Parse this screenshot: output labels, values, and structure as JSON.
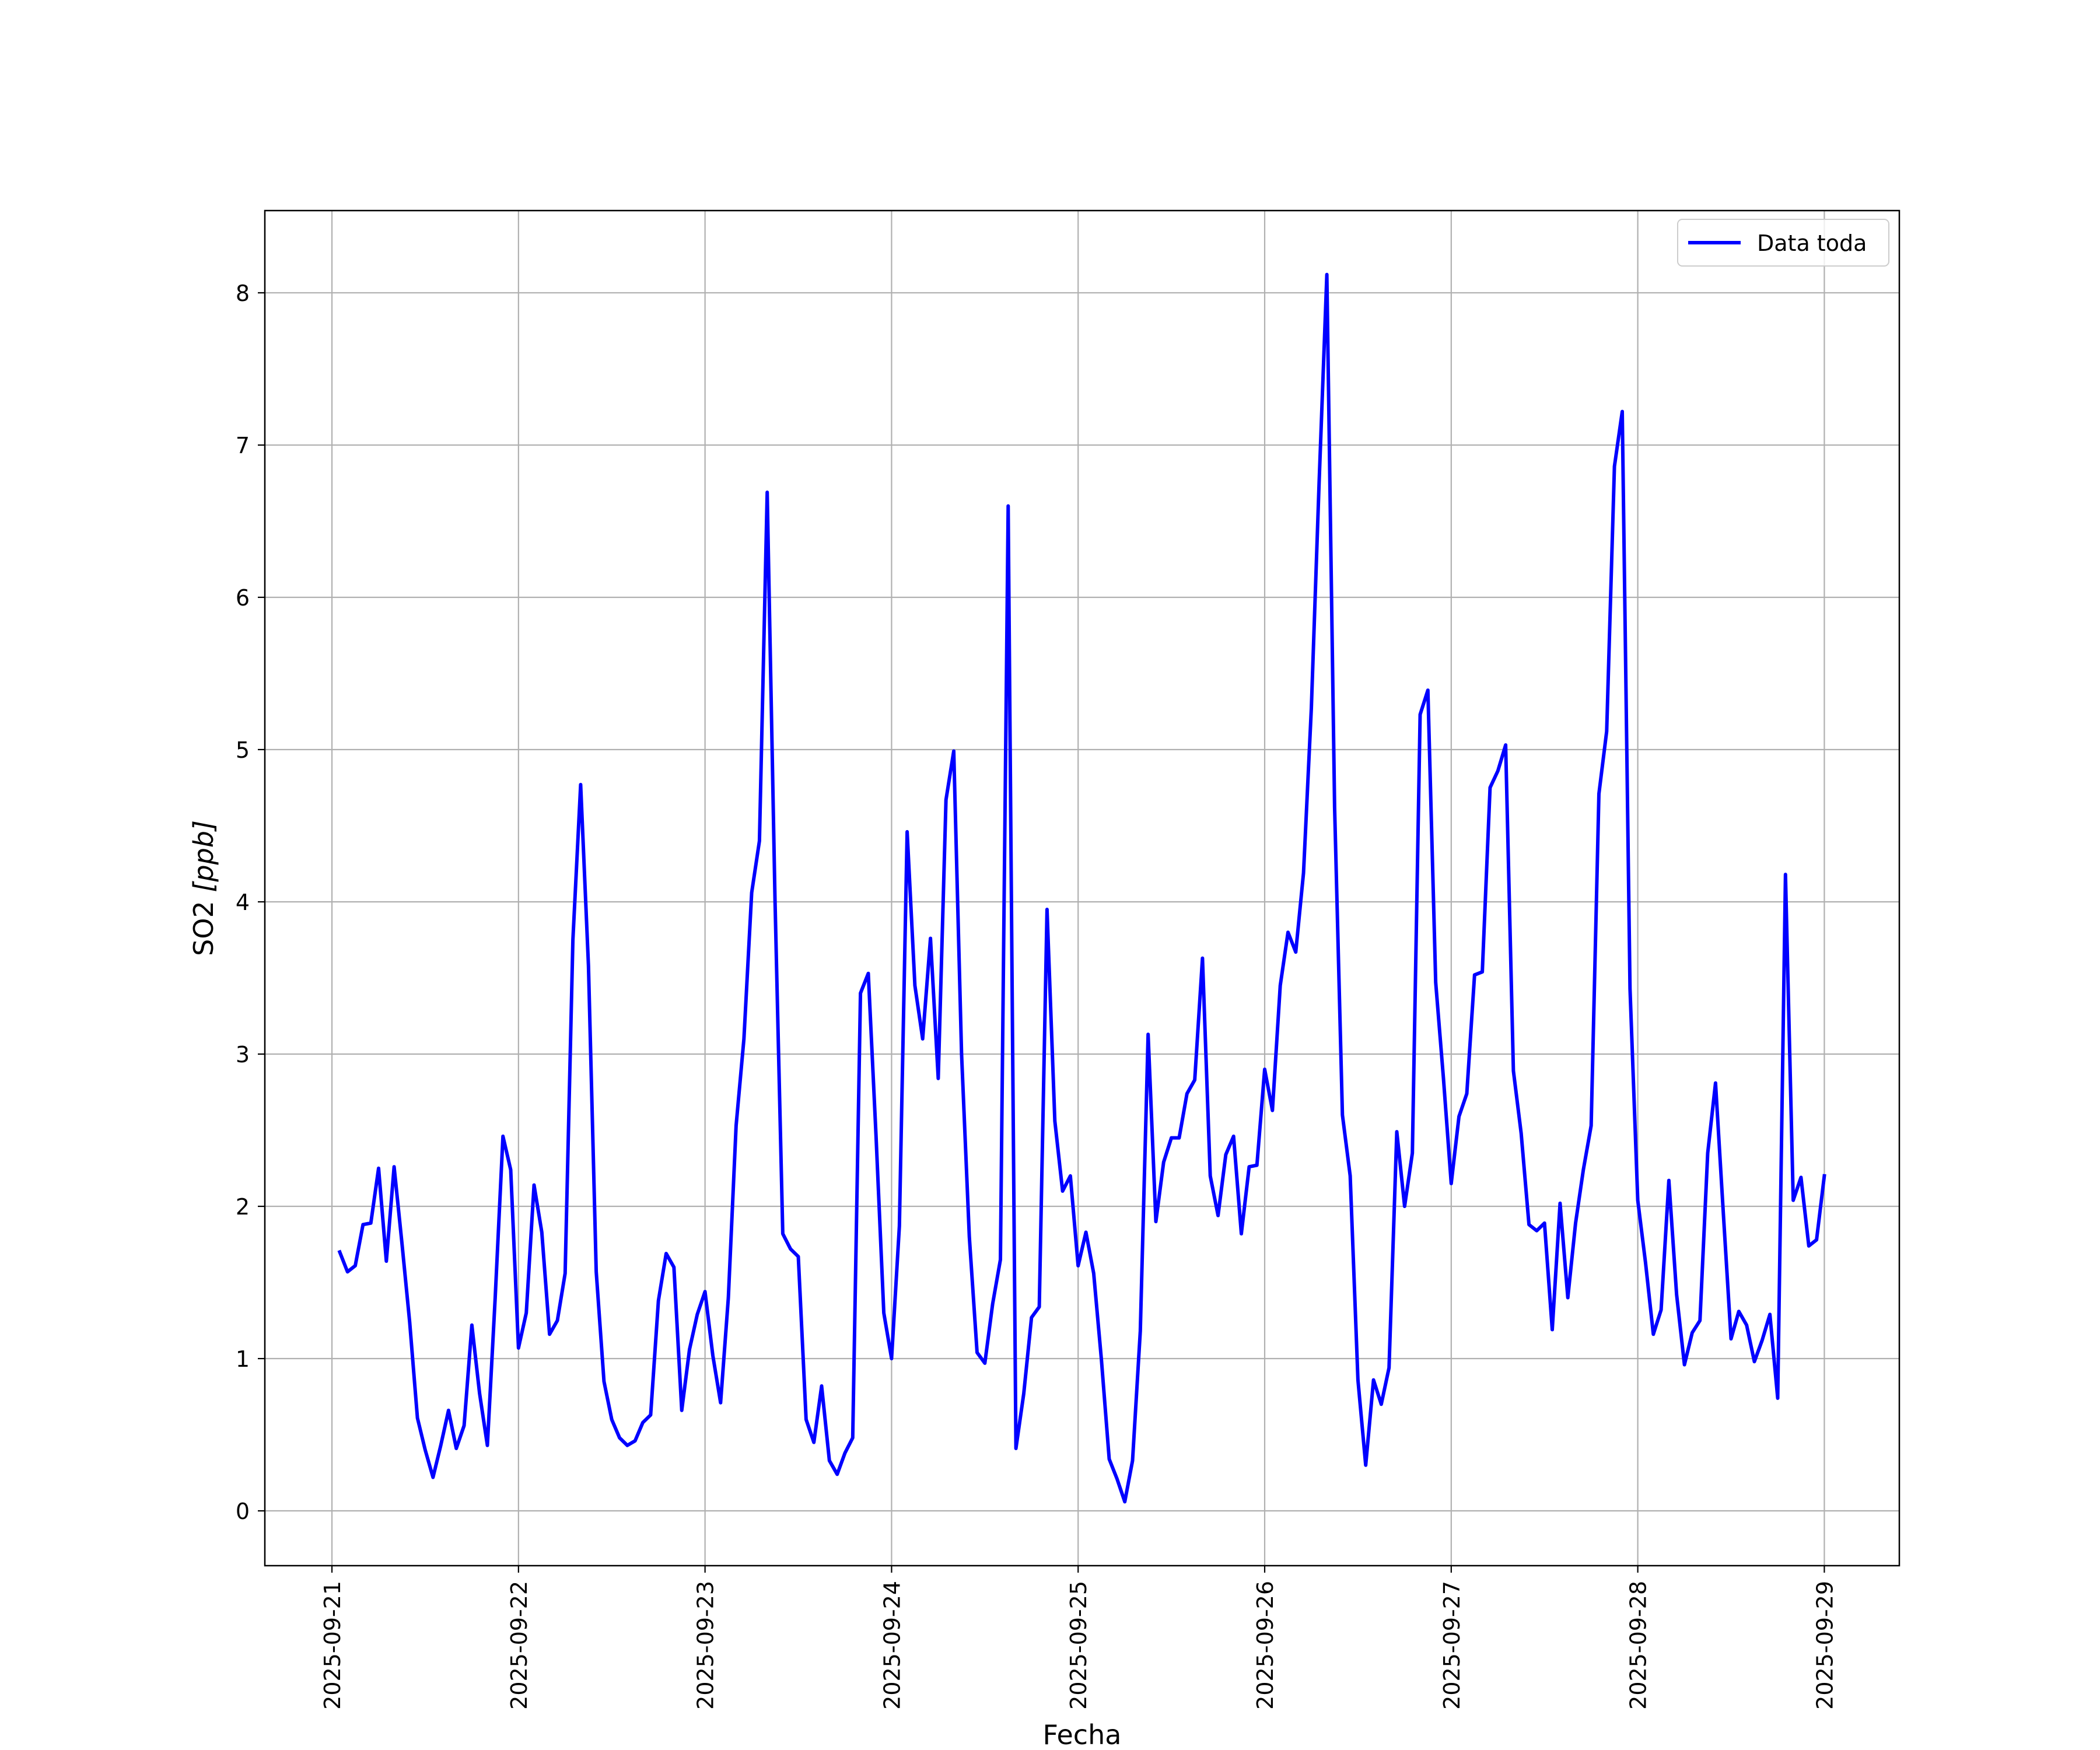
{
  "chart_data": {
    "type": "line",
    "xlabel": "Fecha",
    "ylabel_text": "SO2 ",
    "ylabel_unit": "[ppb]",
    "x_tick_labels": [
      "2025-09-21",
      "2025-09-22",
      "2025-09-23",
      "2025-09-24",
      "2025-09-25",
      "2025-09-26",
      "2025-09-27",
      "2025-09-28",
      "2025-09-29"
    ],
    "y_tick_labels": [
      "0",
      "1",
      "2",
      "3",
      "4",
      "5",
      "6",
      "7",
      "8"
    ],
    "xlim": [
      "2025-09-20T15:22",
      "2025-09-29T09:39"
    ],
    "ylim": [
      -0.36,
      8.54
    ],
    "grid": true,
    "legend_position": "upper right",
    "series": [
      {
        "name": "Data toda",
        "color": "#0000ff",
        "x": [
          "2025-09-21 01:00",
          "2025-09-21 02:00",
          "2025-09-21 03:00",
          "2025-09-21 04:00",
          "2025-09-21 05:00",
          "2025-09-21 06:00",
          "2025-09-21 07:00",
          "2025-09-21 08:00",
          "2025-09-21 09:00",
          "2025-09-21 10:00",
          "2025-09-21 11:00",
          "2025-09-21 12:00",
          "2025-09-21 13:00",
          "2025-09-21 14:00",
          "2025-09-21 15:00",
          "2025-09-21 16:00",
          "2025-09-21 17:00",
          "2025-09-21 18:00",
          "2025-09-21 19:00",
          "2025-09-21 20:00",
          "2025-09-21 21:00",
          "2025-09-21 22:00",
          "2025-09-21 23:00",
          "2025-09-22 00:00",
          "2025-09-22 01:00",
          "2025-09-22 02:00",
          "2025-09-22 03:00",
          "2025-09-22 04:00",
          "2025-09-22 05:00",
          "2025-09-22 06:00",
          "2025-09-22 07:00",
          "2025-09-22 08:00",
          "2025-09-22 09:00",
          "2025-09-22 10:00",
          "2025-09-22 11:00",
          "2025-09-22 12:00",
          "2025-09-22 13:00",
          "2025-09-22 14:00",
          "2025-09-22 15:00",
          "2025-09-22 16:00",
          "2025-09-22 17:00",
          "2025-09-22 18:00",
          "2025-09-22 19:00",
          "2025-09-22 20:00",
          "2025-09-22 21:00",
          "2025-09-22 22:00",
          "2025-09-22 23:00",
          "2025-09-23 00:00",
          "2025-09-23 01:00",
          "2025-09-23 02:00",
          "2025-09-23 03:00",
          "2025-09-23 04:00",
          "2025-09-23 05:00",
          "2025-09-23 06:00",
          "2025-09-23 07:00",
          "2025-09-23 08:00",
          "2025-09-23 09:00",
          "2025-09-23 10:00",
          "2025-09-23 11:00",
          "2025-09-23 12:00",
          "2025-09-23 13:00",
          "2025-09-23 14:00",
          "2025-09-23 15:00",
          "2025-09-23 16:00",
          "2025-09-23 17:00",
          "2025-09-23 18:00",
          "2025-09-23 19:00",
          "2025-09-23 20:00",
          "2025-09-23 21:00",
          "2025-09-23 22:00",
          "2025-09-23 23:00",
          "2025-09-24 00:00",
          "2025-09-24 01:00",
          "2025-09-24 02:00",
          "2025-09-24 03:00",
          "2025-09-24 04:00",
          "2025-09-24 05:00",
          "2025-09-24 06:00",
          "2025-09-24 07:00",
          "2025-09-24 08:00",
          "2025-09-24 09:00",
          "2025-09-24 10:00",
          "2025-09-24 11:00",
          "2025-09-24 12:00",
          "2025-09-24 13:00",
          "2025-09-24 14:00",
          "2025-09-24 15:00",
          "2025-09-24 16:00",
          "2025-09-24 17:00",
          "2025-09-24 18:00",
          "2025-09-24 19:00",
          "2025-09-24 20:00",
          "2025-09-24 21:00",
          "2025-09-24 22:00",
          "2025-09-24 23:00",
          "2025-09-25 00:00",
          "2025-09-25 01:00",
          "2025-09-25 02:00",
          "2025-09-25 03:00",
          "2025-09-25 04:00",
          "2025-09-25 05:00",
          "2025-09-25 06:00",
          "2025-09-25 07:00",
          "2025-09-25 08:00",
          "2025-09-25 09:00",
          "2025-09-25 10:00",
          "2025-09-25 11:00",
          "2025-09-25 12:00",
          "2025-09-25 13:00",
          "2025-09-25 14:00",
          "2025-09-25 15:00",
          "2025-09-25 16:00",
          "2025-09-25 17:00",
          "2025-09-25 18:00",
          "2025-09-25 19:00",
          "2025-09-25 20:00",
          "2025-09-25 21:00",
          "2025-09-25 22:00",
          "2025-09-25 23:00",
          "2025-09-26 00:00",
          "2025-09-26 01:00",
          "2025-09-26 02:00",
          "2025-09-26 03:00",
          "2025-09-26 04:00",
          "2025-09-26 05:00",
          "2025-09-26 06:00",
          "2025-09-26 07:00",
          "2025-09-26 08:00",
          "2025-09-26 09:00",
          "2025-09-26 10:00",
          "2025-09-26 11:00",
          "2025-09-26 12:00",
          "2025-09-26 13:00",
          "2025-09-26 14:00",
          "2025-09-26 15:00",
          "2025-09-26 16:00",
          "2025-09-26 17:00",
          "2025-09-26 18:00",
          "2025-09-26 19:00",
          "2025-09-26 20:00",
          "2025-09-26 21:00",
          "2025-09-26 22:00",
          "2025-09-26 23:00",
          "2025-09-27 00:00",
          "2025-09-27 01:00",
          "2025-09-27 02:00",
          "2025-09-27 03:00",
          "2025-09-27 04:00",
          "2025-09-27 05:00",
          "2025-09-27 06:00",
          "2025-09-27 07:00",
          "2025-09-27 08:00",
          "2025-09-27 09:00",
          "2025-09-27 10:00",
          "2025-09-27 11:00",
          "2025-09-27 12:00",
          "2025-09-27 13:00",
          "2025-09-27 14:00",
          "2025-09-27 15:00",
          "2025-09-27 16:00",
          "2025-09-27 17:00",
          "2025-09-27 18:00",
          "2025-09-27 19:00",
          "2025-09-27 20:00",
          "2025-09-27 21:00",
          "2025-09-27 22:00",
          "2025-09-27 23:00",
          "2025-09-28 00:00",
          "2025-09-28 01:00",
          "2025-09-28 02:00",
          "2025-09-28 03:00",
          "2025-09-28 04:00",
          "2025-09-28 05:00",
          "2025-09-28 06:00",
          "2025-09-28 07:00",
          "2025-09-28 08:00",
          "2025-09-28 09:00",
          "2025-09-28 10:00",
          "2025-09-28 11:00",
          "2025-09-28 12:00",
          "2025-09-28 13:00",
          "2025-09-28 14:00",
          "2025-09-28 15:00",
          "2025-09-28 16:00",
          "2025-09-28 17:00",
          "2025-09-28 18:00",
          "2025-09-28 19:00",
          "2025-09-28 20:00",
          "2025-09-28 21:00",
          "2025-09-28 22:00",
          "2025-09-28 23:00",
          "2025-09-29 00:00"
        ],
        "y": [
          1.7,
          1.57,
          1.61,
          1.88,
          1.89,
          2.25,
          1.64,
          2.26,
          1.76,
          1.24,
          0.61,
          0.4,
          0.22,
          0.43,
          0.66,
          0.41,
          0.56,
          1.22,
          0.77,
          0.43,
          1.4,
          2.46,
          2.24,
          1.07,
          1.3,
          2.14,
          1.83,
          1.16,
          1.25,
          1.56,
          3.75,
          4.77,
          3.58,
          1.57,
          0.85,
          0.6,
          0.48,
          0.43,
          0.46,
          0.58,
          0.63,
          1.38,
          1.69,
          1.6,
          0.66,
          1.06,
          1.29,
          1.44,
          1.02,
          0.71,
          1.4,
          2.53,
          3.1,
          4.06,
          4.4,
          6.69,
          4.01,
          1.82,
          1.72,
          1.67,
          0.6,
          0.45,
          0.82,
          0.33,
          0.24,
          0.38,
          0.48,
          3.4,
          3.53,
          2.46,
          1.3,
          1.0,
          1.87,
          4.46,
          3.45,
          3.1,
          3.76,
          2.84,
          4.67,
          4.99,
          3.0,
          1.8,
          1.04,
          0.97,
          1.36,
          1.65,
          6.6,
          0.41,
          0.77,
          1.27,
          1.34,
          3.95,
          2.56,
          2.1,
          2.2,
          1.61,
          1.83,
          1.56,
          0.99,
          0.34,
          0.21,
          0.06,
          0.33,
          1.18,
          3.13,
          1.9,
          2.29,
          2.45,
          2.45,
          2.74,
          2.83,
          3.63,
          2.2,
          1.94,
          2.34,
          2.46,
          1.82,
          2.26,
          2.27,
          2.9,
          2.63,
          3.45,
          3.8,
          3.67,
          4.19,
          5.27,
          6.75,
          8.12,
          4.62,
          2.6,
          2.2,
          0.86,
          0.3,
          0.86,
          0.7,
          0.94,
          2.49,
          2.0,
          2.35,
          5.23,
          5.39,
          3.47,
          2.84,
          2.15,
          2.59,
          2.74,
          3.52,
          3.54,
          4.75,
          4.86,
          5.03,
          2.89,
          2.48,
          1.88,
          1.84,
          1.89,
          1.19,
          2.02,
          1.4,
          1.89,
          2.24,
          2.53,
          4.71,
          5.12,
          6.86,
          7.22,
          3.43,
          2.04,
          1.63,
          1.16,
          1.32,
          2.17,
          1.42,
          0.96,
          1.17,
          1.25,
          2.35,
          2.81,
          1.96,
          1.13,
          1.31,
          1.22,
          0.98,
          1.12,
          1.29,
          0.74,
          4.18,
          2.04,
          2.19,
          1.74,
          1.78,
          2.2
        ]
      }
    ]
  }
}
